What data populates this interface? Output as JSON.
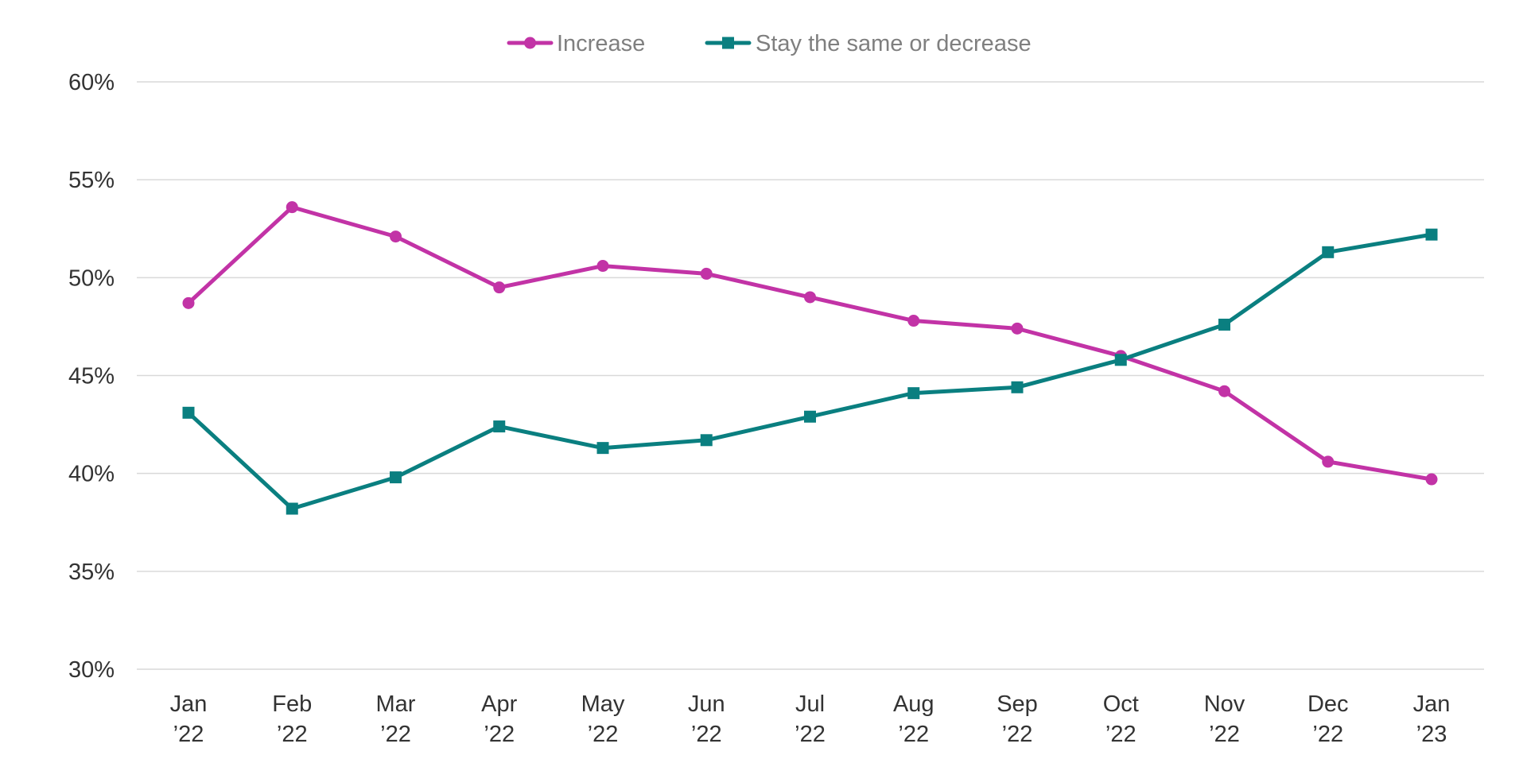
{
  "chart_data": {
    "type": "line",
    "title": "",
    "xlabel": "",
    "ylabel": "",
    "ylim": [
      30,
      60
    ],
    "y_ticks": [
      30,
      35,
      40,
      45,
      50,
      55,
      60
    ],
    "y_tick_labels": [
      "30%",
      "35%",
      "40%",
      "45%",
      "50%",
      "55%",
      "60%"
    ],
    "categories": [
      [
        "Jan",
        "’22"
      ],
      [
        "Feb",
        "’22"
      ],
      [
        "Mar",
        "’22"
      ],
      [
        "Apr",
        "’22"
      ],
      [
        "May",
        "’22"
      ],
      [
        "Jun",
        "’22"
      ],
      [
        "Jul",
        "’22"
      ],
      [
        "Aug",
        "’22"
      ],
      [
        "Sep",
        "’22"
      ],
      [
        "Oct",
        "’22"
      ],
      [
        "Nov",
        "’22"
      ],
      [
        "Dec",
        "’22"
      ],
      [
        "Jan",
        "’23"
      ]
    ],
    "grid": true,
    "legend_position": "top-center",
    "series": [
      {
        "name": "Increase",
        "color": "#c233a6",
        "marker": "circle",
        "values": [
          48.7,
          53.6,
          52.1,
          49.5,
          50.6,
          50.2,
          49.0,
          47.8,
          47.4,
          46.0,
          44.2,
          40.6,
          39.7
        ]
      },
      {
        "name": "Stay the same or decrease",
        "color": "#0a7f80",
        "marker": "square",
        "values": [
          43.1,
          38.2,
          39.8,
          42.4,
          41.3,
          41.7,
          42.9,
          44.1,
          44.4,
          45.8,
          47.6,
          51.3,
          52.2
        ]
      }
    ]
  }
}
